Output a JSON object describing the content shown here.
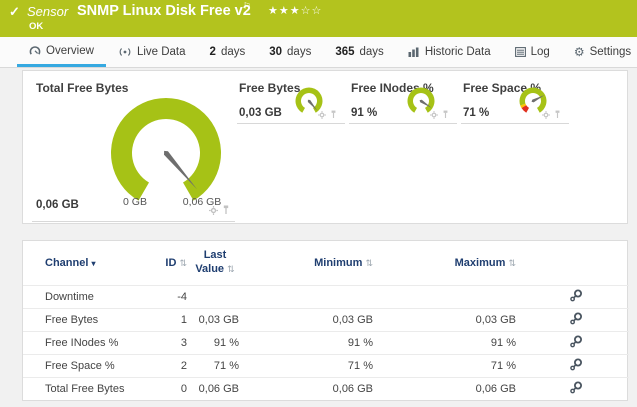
{
  "colors": {
    "header_green": "#b3c31e",
    "gauge_green": "#a6c216",
    "red": "#e0301e",
    "yellow": "#ffc400",
    "active_tab_blue": "#36a9e1",
    "table_header_navy": "#1f3e70"
  },
  "header": {
    "status_check": "✓",
    "kind_label": "Sensor",
    "title": "SNMP Linux Disk Free v2",
    "flag": "⚐",
    "rating": "★★★☆☆",
    "status": "OK"
  },
  "tabs": [
    {
      "id": "overview",
      "label": "Overview",
      "active": true
    },
    {
      "id": "live-data",
      "label": "Live Data"
    },
    {
      "id": "2-days",
      "num": "2",
      "rest": "days"
    },
    {
      "id": "30-days",
      "num": "30",
      "rest": "days"
    },
    {
      "id": "365-days",
      "num": "365",
      "rest": "days"
    },
    {
      "id": "historic-data",
      "label": "Historic Data"
    },
    {
      "id": "log",
      "label": "Log"
    },
    {
      "id": "settings",
      "label": "Settings"
    }
  ],
  "gauges_panel": {
    "main": {
      "title": "Total Free Bytes",
      "value": "0,06 GB",
      "scale_min": "0 GB",
      "scale_max": "0,06 GB",
      "fraction": 0.965,
      "segments": [
        [
          0,
          1,
          "gauge_green"
        ]
      ]
    },
    "minis": [
      {
        "title": "Free Bytes",
        "value": "0,03 GB",
        "fraction": 0.965,
        "segments": [
          [
            0,
            1,
            "gauge_green"
          ]
        ]
      },
      {
        "title": "Free INodes %",
        "value": "91 %",
        "fraction": 0.91,
        "segments": [
          [
            0,
            1,
            "gauge_green"
          ]
        ]
      },
      {
        "title": "Free Space %",
        "value": "71 %",
        "fraction": 0.71,
        "segments": [
          [
            0,
            0.095,
            "red"
          ],
          [
            0.095,
            0.135,
            "yellow"
          ],
          [
            0.135,
            1,
            "gauge_green"
          ]
        ]
      }
    ]
  },
  "table": {
    "headers": {
      "channel": "Channel",
      "channel_sort": "▾",
      "id": "ID",
      "last_line1": "Last",
      "last_line2": "Value",
      "minimum": "Minimum",
      "maximum": "Maximum",
      "sort_glyph": "⇅"
    },
    "rows": [
      {
        "channel": "Downtime",
        "id": "-4",
        "last": "",
        "min": "",
        "max": ""
      },
      {
        "channel": "Free Bytes",
        "id": "1",
        "last": "0,03 GB",
        "min": "0,03 GB",
        "max": "0,03 GB"
      },
      {
        "channel": "Free INodes %",
        "id": "3",
        "last": "91 %",
        "min": "91 %",
        "max": "91 %"
      },
      {
        "channel": "Free Space %",
        "id": "2",
        "last": "71 %",
        "min": "71 %",
        "max": "71 %"
      },
      {
        "channel": "Total Free Bytes",
        "id": "0",
        "last": "0,06 GB",
        "min": "0,06 GB",
        "max": "0,06 GB"
      }
    ]
  }
}
